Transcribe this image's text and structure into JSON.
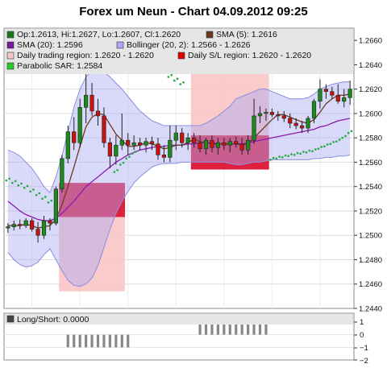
{
  "title": "Forex um Neun - Chart 04.09.2012 09:25",
  "legend": {
    "items": [
      {
        "label": "Op:1.2613, Hi:1.2627, Lo:1.2607, Cl:1.2620",
        "color": "#1a7a1a"
      },
      {
        "label": "SMA (5): 1.2616",
        "color": "#6b3a1e"
      },
      {
        "label": "SMA (20): 1.2596",
        "color": "#7a1aa0"
      },
      {
        "label": "Bollinger (20, 2): 1.2566 - 1.2626",
        "color": "#a9a9f0"
      },
      {
        "label": "Daily trading region: 1.2620 - 1.2620",
        "color": "#f8c8c8"
      },
      {
        "label": "Daily S/L region: 1.2620 - 1.2620",
        "color": "#e00000"
      },
      {
        "label": "Parabolic SAR: 1.2584",
        "color": "#22cc22"
      }
    ]
  },
  "lower_panel": {
    "legend_label": "Long/Short: 0.0000",
    "ticks": [
      "1",
      "0",
      "−1",
      "−2"
    ]
  },
  "chart_data": {
    "type": "candlestick",
    "title": "Forex um Neun - Chart 04.09.2012 09:25",
    "ylim": [
      1.244,
      1.267
    ],
    "yticks": [
      "1.2660",
      "1.2640",
      "1.2620",
      "1.2600",
      "1.2580",
      "1.2560",
      "1.2540",
      "1.2520",
      "1.2500",
      "1.2480",
      "1.2460",
      "1.2440"
    ],
    "ytick_values": [
      1.266,
      1.264,
      1.262,
      1.26,
      1.258,
      1.256,
      1.254,
      1.252,
      1.25,
      1.248,
      1.246,
      1.244
    ],
    "grid": true,
    "legend_position": "top",
    "colors": {
      "up": "#1a8a1a",
      "down": "#cc1111",
      "sma5": "#6b3a1e",
      "sma20": "#8a1ab0",
      "bollinger": "#aaaaf2",
      "sar": "#22aa44",
      "trading_region": "#f9c5c5",
      "sl_region": "#dd1133",
      "long_short": "#888888"
    },
    "candles": [
      {
        "o": 1.2506,
        "h": 1.251,
        "l": 1.2502,
        "c": 1.2507
      },
      {
        "o": 1.2507,
        "h": 1.2512,
        "l": 1.2504,
        "c": 1.2509
      },
      {
        "o": 1.2509,
        "h": 1.2513,
        "l": 1.2505,
        "c": 1.2508
      },
      {
        "o": 1.2508,
        "h": 1.2514,
        "l": 1.2506,
        "c": 1.2512
      },
      {
        "o": 1.2512,
        "h": 1.2514,
        "l": 1.2503,
        "c": 1.2505
      },
      {
        "o": 1.2505,
        "h": 1.2511,
        "l": 1.2494,
        "c": 1.25
      },
      {
        "o": 1.25,
        "h": 1.2516,
        "l": 1.2497,
        "c": 1.2512
      },
      {
        "o": 1.2512,
        "h": 1.2514,
        "l": 1.2504,
        "c": 1.251
      },
      {
        "o": 1.251,
        "h": 1.254,
        "l": 1.2508,
        "c": 1.2538
      },
      {
        "o": 1.2538,
        "h": 1.2566,
        "l": 1.2535,
        "c": 1.2563
      },
      {
        "o": 1.2563,
        "h": 1.259,
        "l": 1.2559,
        "c": 1.2585
      },
      {
        "o": 1.2585,
        "h": 1.2597,
        "l": 1.257,
        "c": 1.2576
      },
      {
        "o": 1.2576,
        "h": 1.2612,
        "l": 1.2572,
        "c": 1.2605
      },
      {
        "o": 1.2605,
        "h": 1.264,
        "l": 1.2592,
        "c": 1.2615
      },
      {
        "o": 1.2615,
        "h": 1.2625,
        "l": 1.2598,
        "c": 1.2602
      },
      {
        "o": 1.2602,
        "h": 1.2612,
        "l": 1.259,
        "c": 1.2598
      },
      {
        "o": 1.2598,
        "h": 1.2605,
        "l": 1.2572,
        "c": 1.2576
      },
      {
        "o": 1.2576,
        "h": 1.258,
        "l": 1.2555,
        "c": 1.2565
      },
      {
        "o": 1.2565,
        "h": 1.2582,
        "l": 1.2558,
        "c": 1.2574
      },
      {
        "o": 1.2574,
        "h": 1.26,
        "l": 1.257,
        "c": 1.2578
      },
      {
        "o": 1.2578,
        "h": 1.2584,
        "l": 1.2566,
        "c": 1.2574
      },
      {
        "o": 1.2574,
        "h": 1.2582,
        "l": 1.257,
        "c": 1.2576
      },
      {
        "o": 1.2576,
        "h": 1.258,
        "l": 1.257,
        "c": 1.2574
      },
      {
        "o": 1.2574,
        "h": 1.258,
        "l": 1.2568,
        "c": 1.2577
      },
      {
        "o": 1.2577,
        "h": 1.2581,
        "l": 1.257,
        "c": 1.2575
      },
      {
        "o": 1.2575,
        "h": 1.258,
        "l": 1.2562,
        "c": 1.2566
      },
      {
        "o": 1.2566,
        "h": 1.2574,
        "l": 1.256,
        "c": 1.2564
      },
      {
        "o": 1.2564,
        "h": 1.259,
        "l": 1.256,
        "c": 1.2578
      },
      {
        "o": 1.2578,
        "h": 1.259,
        "l": 1.257,
        "c": 1.2584
      },
      {
        "o": 1.2584,
        "h": 1.2588,
        "l": 1.2572,
        "c": 1.2576
      },
      {
        "o": 1.2576,
        "h": 1.2584,
        "l": 1.257,
        "c": 1.258
      },
      {
        "o": 1.258,
        "h": 1.2584,
        "l": 1.2572,
        "c": 1.2576
      },
      {
        "o": 1.2576,
        "h": 1.2582,
        "l": 1.2568,
        "c": 1.2571
      },
      {
        "o": 1.2571,
        "h": 1.258,
        "l": 1.2566,
        "c": 1.2578
      },
      {
        "o": 1.2578,
        "h": 1.2582,
        "l": 1.2568,
        "c": 1.2572
      },
      {
        "o": 1.2572,
        "h": 1.258,
        "l": 1.2566,
        "c": 1.2576
      },
      {
        "o": 1.2576,
        "h": 1.258,
        "l": 1.257,
        "c": 1.2574
      },
      {
        "o": 1.2574,
        "h": 1.258,
        "l": 1.2568,
        "c": 1.2577
      },
      {
        "o": 1.2577,
        "h": 1.2581,
        "l": 1.2572,
        "c": 1.2575
      },
      {
        "o": 1.2575,
        "h": 1.258,
        "l": 1.2566,
        "c": 1.257
      },
      {
        "o": 1.257,
        "h": 1.2582,
        "l": 1.2566,
        "c": 1.2578
      },
      {
        "o": 1.2578,
        "h": 1.2612,
        "l": 1.2575,
        "c": 1.2598
      },
      {
        "o": 1.2598,
        "h": 1.2606,
        "l": 1.2592,
        "c": 1.26
      },
      {
        "o": 1.26,
        "h": 1.2604,
        "l": 1.2594,
        "c": 1.2601
      },
      {
        "o": 1.2601,
        "h": 1.2604,
        "l": 1.2597,
        "c": 1.2599
      },
      {
        "o": 1.2599,
        "h": 1.2602,
        "l": 1.2594,
        "c": 1.2598
      },
      {
        "o": 1.2598,
        "h": 1.2602,
        "l": 1.2593,
        "c": 1.2596
      },
      {
        "o": 1.2596,
        "h": 1.26,
        "l": 1.2588,
        "c": 1.2592
      },
      {
        "o": 1.2592,
        "h": 1.2596,
        "l": 1.2587,
        "c": 1.259
      },
      {
        "o": 1.259,
        "h": 1.2594,
        "l": 1.2584,
        "c": 1.2588
      },
      {
        "o": 1.2588,
        "h": 1.2598,
        "l": 1.2584,
        "c": 1.2596
      },
      {
        "o": 1.2596,
        "h": 1.2612,
        "l": 1.2592,
        "c": 1.261
      },
      {
        "o": 1.261,
        "h": 1.2628,
        "l": 1.2604,
        "c": 1.262
      },
      {
        "o": 1.262,
        "h": 1.2624,
        "l": 1.2612,
        "c": 1.2618
      },
      {
        "o": 1.2618,
        "h": 1.2622,
        "l": 1.2612,
        "c": 1.2615
      },
      {
        "o": 1.2615,
        "h": 1.2624,
        "l": 1.2608,
        "c": 1.261
      },
      {
        "o": 1.261,
        "h": 1.262,
        "l": 1.2605,
        "c": 1.2613
      },
      {
        "o": 1.2613,
        "h": 1.2627,
        "l": 1.2607,
        "c": 1.262
      }
    ],
    "sma5": [
      1.2508,
      1.2508,
      1.2508,
      1.2509,
      1.2508,
      1.2506,
      1.2507,
      1.2508,
      1.2513,
      1.2525,
      1.254,
      1.2556,
      1.2573,
      1.2589,
      1.2597,
      1.26,
      1.2599,
      1.2591,
      1.2583,
      1.2578,
      1.2573,
      1.2573,
      1.2574,
      1.2576,
      1.2575,
      1.2573,
      1.2571,
      1.2572,
      1.2574,
      1.2574,
      1.2576,
      1.2579,
      1.2577,
      1.2576,
      1.2575,
      1.2575,
      1.2575,
      1.2575,
      1.2575,
      1.2574,
      1.2575,
      1.258,
      1.2585,
      1.259,
      1.2595,
      1.2599,
      1.2599,
      1.2597,
      1.2595,
      1.2593,
      1.2592,
      1.2595,
      1.2601,
      1.2608,
      1.2612,
      1.2615,
      1.2615,
      1.2616
    ],
    "sma20": [
      1.2528,
      1.2524,
      1.252,
      1.2517,
      1.2515,
      1.2513,
      1.2512,
      1.2512,
      1.2514,
      1.2518,
      1.2523,
      1.2528,
      1.2534,
      1.254,
      1.2544,
      1.2548,
      1.2552,
      1.2556,
      1.256,
      1.2563,
      1.2566,
      1.2568,
      1.257,
      1.2571,
      1.2572,
      1.2573,
      1.2573,
      1.2574,
      1.2574,
      1.2574,
      1.2575,
      1.2575,
      1.2576,
      1.2576,
      1.2576,
      1.2575,
      1.2575,
      1.2575,
      1.2575,
      1.2575,
      1.2576,
      1.2577,
      1.2578,
      1.2579,
      1.258,
      1.2581,
      1.2582,
      1.2583,
      1.2584,
      1.2585,
      1.2586,
      1.2587,
      1.2589,
      1.259,
      1.2592,
      1.2594,
      1.2595,
      1.2596
    ],
    "bb_upper": [
      1.257,
      1.2568,
      1.2565,
      1.256,
      1.2555,
      1.2548,
      1.254,
      1.2535,
      1.2548,
      1.2565,
      1.2585,
      1.2605,
      1.262,
      1.263,
      1.2635,
      1.2636,
      1.2634,
      1.263,
      1.2625,
      1.262,
      1.2614,
      1.2608,
      1.2602,
      1.2598,
      1.2594,
      1.2592,
      1.259,
      1.259,
      1.259,
      1.259,
      1.259,
      1.259,
      1.259,
      1.2592,
      1.2595,
      1.2598,
      1.2602,
      1.2606,
      1.2612,
      1.2614,
      1.2616,
      1.2618,
      1.262,
      1.262,
      1.2618,
      1.2616,
      1.2614,
      1.2612,
      1.2612,
      1.2612,
      1.2613,
      1.2616,
      1.262,
      1.2622,
      1.2624,
      1.2625,
      1.2626,
      1.2626
    ],
    "bb_lower": [
      1.2486,
      1.248,
      1.2476,
      1.2474,
      1.2475,
      1.2478,
      1.2484,
      1.2489,
      1.248,
      1.2471,
      1.2463,
      1.2459,
      1.2458,
      1.246,
      1.2465,
      1.2475,
      1.249,
      1.2505,
      1.2518,
      1.2528,
      1.2536,
      1.2543,
      1.2548,
      1.2552,
      1.2556,
      1.2558,
      1.2559,
      1.2559,
      1.2559,
      1.256,
      1.256,
      1.256,
      1.256,
      1.256,
      1.256,
      1.256,
      1.256,
      1.2559,
      1.2558,
      1.2558,
      1.2559,
      1.256,
      1.256,
      1.2561,
      1.2562,
      1.2562,
      1.2562,
      1.2562,
      1.2562,
      1.2562,
      1.2562,
      1.2563,
      1.2563,
      1.2564,
      1.2564,
      1.2565,
      1.2565,
      1.2566
    ],
    "sar": [
      {
        "i": 0,
        "v": 1.2545
      },
      {
        "i": 1,
        "v": 1.2543
      },
      {
        "i": 2,
        "v": 1.2541
      },
      {
        "i": 3,
        "v": 1.2539
      },
      {
        "i": 4,
        "v": 1.2536
      },
      {
        "i": 5,
        "v": 1.2533
      },
      {
        "i": 6,
        "v": 1.253
      },
      {
        "i": 7,
        "v": 1.2527
      },
      {
        "i": 18,
        "v": 1.2552
      },
      {
        "i": 19,
        "v": 1.2558
      },
      {
        "i": 20,
        "v": 1.2563
      },
      {
        "i": 21,
        "v": 1.2567
      },
      {
        "i": 22,
        "v": 1.2648
      },
      {
        "i": 23,
        "v": 1.2645
      },
      {
        "i": 24,
        "v": 1.2641
      },
      {
        "i": 25,
        "v": 1.2637
      },
      {
        "i": 26,
        "v": 1.2634
      },
      {
        "i": 27,
        "v": 1.263
      },
      {
        "i": 28,
        "v": 1.2627
      },
      {
        "i": 29,
        "v": 1.2624
      },
      {
        "i": 44,
        "v": 1.2562
      },
      {
        "i": 45,
        "v": 1.2563
      },
      {
        "i": 46,
        "v": 1.2564
      },
      {
        "i": 47,
        "v": 1.2565
      },
      {
        "i": 48,
        "v": 1.2566
      },
      {
        "i": 49,
        "v": 1.2567
      },
      {
        "i": 50,
        "v": 1.2568
      },
      {
        "i": 51,
        "v": 1.2569
      },
      {
        "i": 52,
        "v": 1.2571
      },
      {
        "i": 53,
        "v": 1.2573
      },
      {
        "i": 54,
        "v": 1.2575
      },
      {
        "i": 55,
        "v": 1.2577
      },
      {
        "i": 56,
        "v": 1.258
      },
      {
        "i": 57,
        "v": 1.2584
      }
    ],
    "trading_regions": [
      {
        "i0": 9,
        "i1": 19,
        "low": 1.2454,
        "high": 1.2543
      },
      {
        "i0": 31,
        "i1": 43,
        "low": 1.2554,
        "high": 1.2643
      }
    ],
    "sl_regions": [
      {
        "i0": 9,
        "i1": 19,
        "low": 1.2515,
        "high": 1.2543
      },
      {
        "i0": 31,
        "i1": 43,
        "low": 1.2554,
        "high": 1.2582
      }
    ],
    "long_short": {
      "ylim": [
        -2,
        1
      ],
      "bars": [
        {
          "i": 10,
          "v": -1
        },
        {
          "i": 11,
          "v": -1
        },
        {
          "i": 12,
          "v": -1
        },
        {
          "i": 13,
          "v": -1
        },
        {
          "i": 14,
          "v": -1
        },
        {
          "i": 15,
          "v": -1
        },
        {
          "i": 16,
          "v": -1
        },
        {
          "i": 17,
          "v": -1
        },
        {
          "i": 18,
          "v": -1
        },
        {
          "i": 19,
          "v": -1
        },
        {
          "i": 20,
          "v": -1
        },
        {
          "i": 32,
          "v": 1
        },
        {
          "i": 33,
          "v": 1
        },
        {
          "i": 34,
          "v": 1
        },
        {
          "i": 35,
          "v": 1
        },
        {
          "i": 36,
          "v": 1
        },
        {
          "i": 37,
          "v": 1
        },
        {
          "i": 38,
          "v": 1
        },
        {
          "i": 39,
          "v": 1
        },
        {
          "i": 40,
          "v": 1
        },
        {
          "i": 41,
          "v": 1
        },
        {
          "i": 42,
          "v": 1
        },
        {
          "i": 43,
          "v": 1
        }
      ]
    }
  }
}
